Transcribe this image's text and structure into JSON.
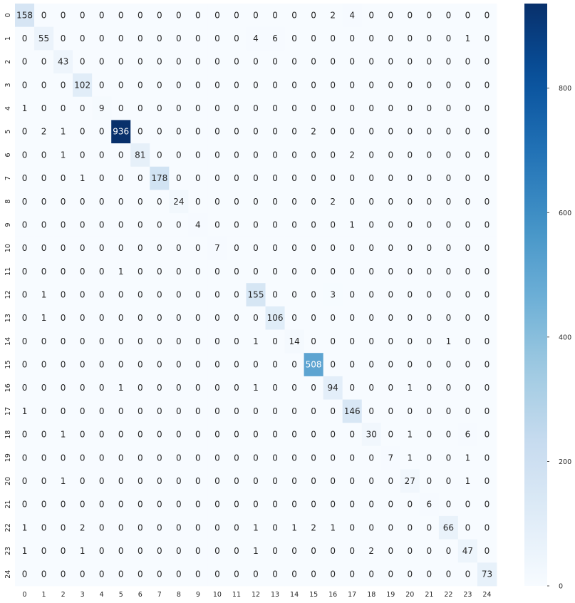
{
  "chart_data": {
    "type": "heatmap",
    "title": "",
    "xlabel": "",
    "ylabel": "",
    "x_labels": [
      "0",
      "1",
      "2",
      "3",
      "4",
      "5",
      "6",
      "7",
      "8",
      "9",
      "10",
      "11",
      "12",
      "13",
      "14",
      "15",
      "16",
      "17",
      "18",
      "19",
      "20",
      "21",
      "22",
      "23",
      "24"
    ],
    "y_labels": [
      "0",
      "1",
      "2",
      "3",
      "4",
      "5",
      "6",
      "7",
      "8",
      "9",
      "10",
      "11",
      "12",
      "13",
      "14",
      "15",
      "16",
      "17",
      "18",
      "19",
      "20",
      "21",
      "22",
      "23",
      "24"
    ],
    "values": [
      [
        158,
        0,
        0,
        0,
        0,
        0,
        0,
        0,
        0,
        0,
        0,
        0,
        0,
        0,
        0,
        0,
        2,
        4,
        0,
        0,
        0,
        0,
        0,
        0,
        0
      ],
      [
        0,
        55,
        0,
        0,
        0,
        0,
        0,
        0,
        0,
        0,
        0,
        0,
        4,
        6,
        0,
        0,
        0,
        0,
        0,
        0,
        0,
        0,
        0,
        1,
        0
      ],
      [
        0,
        0,
        43,
        0,
        0,
        0,
        0,
        0,
        0,
        0,
        0,
        0,
        0,
        0,
        0,
        0,
        0,
        0,
        0,
        0,
        0,
        0,
        0,
        0,
        0
      ],
      [
        0,
        0,
        0,
        102,
        0,
        0,
        0,
        0,
        0,
        0,
        0,
        0,
        0,
        0,
        0,
        0,
        0,
        0,
        0,
        0,
        0,
        0,
        0,
        0,
        0
      ],
      [
        1,
        0,
        0,
        0,
        9,
        0,
        0,
        0,
        0,
        0,
        0,
        0,
        0,
        0,
        0,
        0,
        0,
        0,
        0,
        0,
        0,
        0,
        0,
        0,
        0
      ],
      [
        0,
        2,
        1,
        0,
        0,
        936,
        0,
        0,
        0,
        0,
        0,
        0,
        0,
        0,
        0,
        2,
        0,
        0,
        0,
        0,
        0,
        0,
        0,
        0,
        0
      ],
      [
        0,
        0,
        1,
        0,
        0,
        0,
        81,
        0,
        0,
        0,
        0,
        0,
        0,
        0,
        0,
        0,
        0,
        2,
        0,
        0,
        0,
        0,
        0,
        0,
        0
      ],
      [
        0,
        0,
        0,
        1,
        0,
        0,
        0,
        178,
        0,
        0,
        0,
        0,
        0,
        0,
        0,
        0,
        0,
        0,
        0,
        0,
        0,
        0,
        0,
        0,
        0
      ],
      [
        0,
        0,
        0,
        0,
        0,
        0,
        0,
        0,
        24,
        0,
        0,
        0,
        0,
        0,
        0,
        0,
        2,
        0,
        0,
        0,
        0,
        0,
        0,
        0,
        0
      ],
      [
        0,
        0,
        0,
        0,
        0,
        0,
        0,
        0,
        0,
        4,
        0,
        0,
        0,
        0,
        0,
        0,
        0,
        1,
        0,
        0,
        0,
        0,
        0,
        0,
        0
      ],
      [
        0,
        0,
        0,
        0,
        0,
        0,
        0,
        0,
        0,
        0,
        7,
        0,
        0,
        0,
        0,
        0,
        0,
        0,
        0,
        0,
        0,
        0,
        0,
        0,
        0
      ],
      [
        0,
        0,
        0,
        0,
        0,
        1,
        0,
        0,
        0,
        0,
        0,
        0,
        0,
        0,
        0,
        0,
        0,
        0,
        0,
        0,
        0,
        0,
        0,
        0,
        0
      ],
      [
        0,
        1,
        0,
        0,
        0,
        0,
        0,
        0,
        0,
        0,
        0,
        0,
        155,
        0,
        0,
        0,
        3,
        0,
        0,
        0,
        0,
        0,
        0,
        0,
        0
      ],
      [
        0,
        1,
        0,
        0,
        0,
        0,
        0,
        0,
        0,
        0,
        0,
        0,
        0,
        106,
        0,
        0,
        0,
        0,
        0,
        0,
        0,
        0,
        0,
        0,
        0
      ],
      [
        0,
        0,
        0,
        0,
        0,
        0,
        0,
        0,
        0,
        0,
        0,
        0,
        1,
        0,
        14,
        0,
        0,
        0,
        0,
        0,
        0,
        0,
        1,
        0,
        0
      ],
      [
        0,
        0,
        0,
        0,
        0,
        0,
        0,
        0,
        0,
        0,
        0,
        0,
        0,
        0,
        0,
        508,
        0,
        0,
        0,
        0,
        0,
        0,
        0,
        0,
        0
      ],
      [
        0,
        0,
        0,
        0,
        0,
        1,
        0,
        0,
        0,
        0,
        0,
        0,
        1,
        0,
        0,
        0,
        94,
        0,
        0,
        0,
        1,
        0,
        0,
        0,
        0
      ],
      [
        1,
        0,
        0,
        0,
        0,
        0,
        0,
        0,
        0,
        0,
        0,
        0,
        0,
        0,
        0,
        0,
        0,
        146,
        0,
        0,
        0,
        0,
        0,
        0,
        0
      ],
      [
        0,
        0,
        1,
        0,
        0,
        0,
        0,
        0,
        0,
        0,
        0,
        0,
        0,
        0,
        0,
        0,
        0,
        0,
        30,
        0,
        1,
        0,
        0,
        6,
        0
      ],
      [
        0,
        0,
        0,
        0,
        0,
        0,
        0,
        0,
        0,
        0,
        0,
        0,
        0,
        0,
        0,
        0,
        0,
        0,
        0,
        7,
        1,
        0,
        0,
        1,
        0
      ],
      [
        0,
        0,
        1,
        0,
        0,
        0,
        0,
        0,
        0,
        0,
        0,
        0,
        0,
        0,
        0,
        0,
        0,
        0,
        0,
        0,
        27,
        0,
        0,
        1,
        0
      ],
      [
        0,
        0,
        0,
        0,
        0,
        0,
        0,
        0,
        0,
        0,
        0,
        0,
        0,
        0,
        0,
        0,
        0,
        0,
        0,
        0,
        0,
        6,
        0,
        0,
        0
      ],
      [
        1,
        0,
        0,
        2,
        0,
        0,
        0,
        0,
        0,
        0,
        0,
        0,
        1,
        0,
        1,
        2,
        1,
        0,
        0,
        0,
        0,
        0,
        66,
        0,
        0
      ],
      [
        1,
        0,
        0,
        1,
        0,
        0,
        0,
        0,
        0,
        0,
        0,
        0,
        1,
        0,
        0,
        0,
        0,
        0,
        2,
        0,
        0,
        0,
        0,
        47,
        0
      ],
      [
        0,
        0,
        0,
        0,
        0,
        0,
        0,
        0,
        0,
        0,
        0,
        0,
        0,
        0,
        0,
        0,
        0,
        0,
        0,
        0,
        0,
        0,
        0,
        0,
        73
      ]
    ],
    "colorbar": {
      "colormap": "Blues",
      "vmin": 0,
      "vmax": 936,
      "ticks": [
        0,
        200,
        400,
        600,
        800
      ]
    },
    "annotations": "cell counts",
    "grid": false
  }
}
